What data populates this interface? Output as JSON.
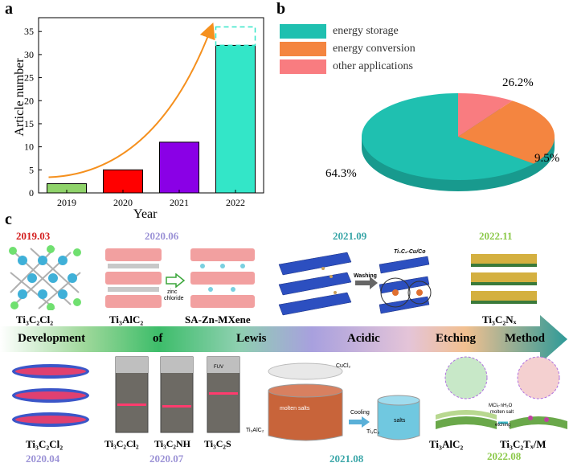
{
  "panel_a": {
    "letter": "a",
    "chart_data": {
      "type": "bar",
      "categories": [
        "2019",
        "2020",
        "2021",
        "2022"
      ],
      "values": [
        2,
        5,
        11,
        32
      ],
      "colors": [
        "#8fd36a",
        "#ff0000",
        "#8a00e6",
        "#33e6c8"
      ],
      "xlabel": "Year",
      "ylabel": "Article number",
      "ylim": [
        0,
        38
      ],
      "yticks": [
        "0",
        "5",
        "10",
        "15",
        "20",
        "25",
        "30",
        "35"
      ],
      "projected_value": 36,
      "trend_color": "#f5901e"
    }
  },
  "panel_b": {
    "letter": "b",
    "chart_data": {
      "type": "pie",
      "labels": [
        "energy storage",
        "energy conversion",
        "other applications"
      ],
      "values": [
        64.3,
        26.2,
        9.5
      ],
      "value_labels": [
        "64.3%",
        "26.2%",
        "9.5%"
      ],
      "colors": [
        "#1fc0b0",
        "#f48540",
        "#f97c80"
      ]
    }
  },
  "panel_c": {
    "letter": "c",
    "top_dates": [
      "2019.03",
      "2020.06",
      "2021.09",
      "2022.11"
    ],
    "top_date_colors": [
      "#d42020",
      "#9b92d6",
      "#3aa6a8",
      "#8cc94a"
    ],
    "top_labels": [
      "Ti₃C₂Cl₂",
      "Ti₃AlC₂",
      "SA-Zn-MXene",
      "Ti₃C₂Nₓ"
    ],
    "zinc_label_1": "zinc",
    "zinc_label_2": "chloride",
    "washing_label": "Washing",
    "cu_co_label": "Ti₃C₂-Cu/Co",
    "arrow_words": [
      "Development",
      "of",
      "Lewis",
      "Acidic",
      "Etching",
      "Method"
    ],
    "bottom_labels": [
      "Ti₃C₂Cl₂",
      "Ti₃C₂Cl₂",
      "Ti₃C₂NH",
      "Ti₃C₂S",
      "Ti₃AlC₂",
      "Ti₃C₂Tₓ/M"
    ],
    "bottom_dates": [
      "2020.04",
      "2020.07",
      "2021.08",
      "2022.08"
    ],
    "bottom_date_colors": [
      "#9b92d6",
      "#9b92d6",
      "#3aa6a8",
      "#8cc94a"
    ],
    "vial_top_label": "FUV",
    "molten_salts_label": "molten salts",
    "cooling_label": "Cooling",
    "salts_label": "salts",
    "cucl2_label": "CuCl₂",
    "ti3alc2_small": "Ti₃AlC₂",
    "ti3c2_small": "Ti₃C₂",
    "etching_note_1": "MClₓ·nH₂O",
    "etching_note_2": "molten salt",
    "etching_note_3": "etching"
  }
}
